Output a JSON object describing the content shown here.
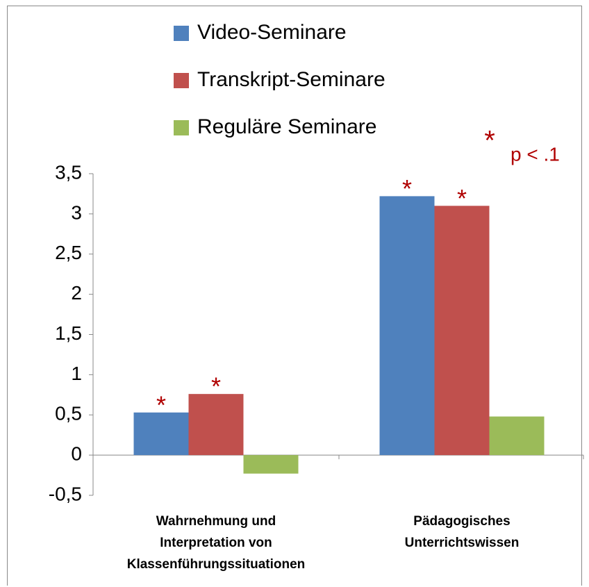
{
  "chart_data": {
    "type": "bar",
    "categories": [
      "Wahrnehmung und\nInterpretation von\nKlassenführungssituationen",
      "Pädagogisches\nUnterrichtswissen"
    ],
    "series": [
      {
        "name": "Video-Seminare",
        "color": "#4f81bd",
        "values": [
          0.53,
          3.22
        ],
        "markers": [
          "*",
          "*"
        ]
      },
      {
        "name": "Transkript-Seminare",
        "color": "#c0504d",
        "values": [
          0.76,
          3.1
        ],
        "markers": [
          "*",
          "*"
        ]
      },
      {
        "name": "Reguläre Seminare",
        "color": "#9bbb59",
        "values": [
          -0.23,
          0.48
        ]
      }
    ],
    "significance_marker": "*",
    "significance_note": "p < .1",
    "marker_color": "#b00000",
    "ylim": [
      -0.5,
      3.5
    ],
    "yticks": [
      {
        "value": -0.5,
        "label": "-0,5"
      },
      0,
      {
        "value": 0.5,
        "label": "0,5"
      },
      1,
      {
        "value": 1.5,
        "label": "1,5"
      },
      2,
      {
        "value": 2.5,
        "label": "2,5"
      },
      3,
      {
        "value": 3.5,
        "label": "3,5"
      }
    ],
    "grid": false
  }
}
